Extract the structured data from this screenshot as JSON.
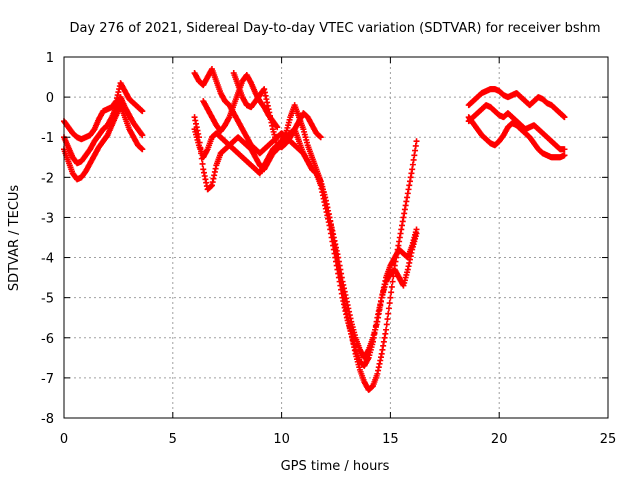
{
  "chart_data": {
    "type": "scatter",
    "title": "Day 276 of 2021, Sidereal Day-to-day VTEC variation (SDTVAR) for receiver bshm",
    "xlabel": "GPS time / hours",
    "ylabel": "SDTVAR / TECUs",
    "xlim": [
      0,
      25
    ],
    "ylim": [
      -8,
      1
    ],
    "x_ticks": [
      0,
      5,
      10,
      15,
      20,
      25
    ],
    "y_ticks": [
      1,
      0,
      -1,
      -2,
      -3,
      -4,
      -5,
      -6,
      -7,
      -8
    ],
    "grid": true,
    "marker": "+",
    "colors": {
      "points": "#ff0000",
      "axes": "#000000",
      "grid": "#a0a0a0"
    },
    "series": [
      {
        "x": [
          0.0,
          0.2,
          0.4,
          0.6,
          0.8,
          1.0,
          1.2,
          1.4,
          1.6,
          1.8,
          2.0,
          2.2,
          2.4,
          2.6,
          2.8,
          3.0,
          3.2,
          3.4,
          3.6
        ],
        "y": [
          -1.3,
          -1.6,
          -1.9,
          -2.05,
          -2.0,
          -1.85,
          -1.65,
          -1.45,
          -1.25,
          -1.1,
          -0.95,
          -0.7,
          -0.45,
          -0.2,
          -0.5,
          -0.8,
          -1.0,
          -1.2,
          -1.3
        ]
      },
      {
        "x": [
          0.0,
          0.2,
          0.4,
          0.6,
          0.8,
          1.0,
          1.2,
          1.4,
          1.6,
          1.8,
          2.0,
          2.2,
          2.4,
          2.6,
          2.8,
          3.0,
          3.2,
          3.4,
          3.6
        ],
        "y": [
          -1.0,
          -1.25,
          -1.5,
          -1.65,
          -1.6,
          -1.45,
          -1.3,
          -1.1,
          -0.95,
          -0.8,
          -0.7,
          -0.5,
          -0.25,
          0.0,
          -0.25,
          -0.45,
          -0.65,
          -0.8,
          -0.95
        ]
      },
      {
        "x": [
          0.0,
          0.2,
          0.4,
          0.6,
          0.8,
          1.0,
          1.2,
          1.4,
          1.6,
          1.8,
          2.0,
          2.2,
          2.4,
          2.6,
          2.8,
          3.0,
          3.2,
          3.4,
          3.6
        ],
        "y": [
          -0.6,
          -0.75,
          -0.9,
          -1.0,
          -1.05,
          -1.0,
          -0.95,
          -0.8,
          -0.55,
          -0.35,
          -0.3,
          -0.25,
          -0.1,
          0.35,
          0.15,
          -0.05,
          -0.15,
          -0.25,
          -0.35
        ]
      },
      {
        "x": [
          6.0,
          6.2,
          6.4,
          6.6,
          6.8,
          7.0,
          7.2,
          7.4,
          7.6,
          7.8,
          8.0,
          8.2,
          8.4,
          8.6,
          8.8,
          9.0,
          9.2,
          9.4,
          9.6,
          9.8,
          10.0,
          10.2,
          10.4,
          10.6,
          10.8,
          11.0,
          11.2,
          11.4,
          11.6,
          11.8,
          12.0,
          12.2,
          12.4,
          12.6,
          12.8,
          13.0,
          13.2,
          13.4,
          13.6,
          13.8,
          14.0,
          14.2,
          14.4,
          14.6,
          14.8,
          15.0,
          15.2,
          15.4,
          15.6,
          15.8,
          16.0,
          16.2
        ],
        "y": [
          -0.5,
          -1.0,
          -1.8,
          -2.3,
          -2.2,
          -1.7,
          -1.4,
          -1.3,
          -1.2,
          -1.1,
          -1.0,
          -1.1,
          -1.2,
          -1.3,
          -1.5,
          -1.7,
          -1.8,
          -1.6,
          -1.4,
          -1.3,
          -1.1,
          -0.9,
          -0.5,
          -0.2,
          -0.5,
          -0.8,
          -1.2,
          -1.5,
          -1.8,
          -2.1,
          -2.5,
          -3.0,
          -3.6,
          -4.2,
          -4.8,
          -5.4,
          -5.9,
          -6.4,
          -6.8,
          -7.1,
          -7.3,
          -7.2,
          -6.9,
          -6.4,
          -5.8,
          -5.0,
          -4.2,
          -3.6,
          -3.0,
          -2.4,
          -1.8,
          -1.1
        ]
      },
      {
        "x": [
          6.0,
          6.2,
          6.4,
          6.6,
          6.8,
          7.0,
          7.2,
          7.4,
          7.6,
          7.8,
          8.0,
          8.2,
          8.4,
          8.6,
          8.8,
          9.0,
          9.2,
          9.4,
          9.6,
          9.8,
          10.0,
          10.2,
          10.4,
          10.6,
          10.8,
          11.0,
          11.2,
          11.4,
          11.6,
          11.8,
          12.0,
          12.2,
          12.4,
          12.6,
          12.8,
          13.0,
          13.2,
          13.4,
          13.6,
          13.8,
          14.0,
          14.2,
          14.4,
          14.6,
          14.8,
          15.0,
          15.2,
          15.4,
          15.6,
          15.8,
          16.0,
          16.2
        ],
        "y": [
          -0.8,
          -1.2,
          -1.5,
          -1.3,
          -1.0,
          -0.9,
          -1.0,
          -1.1,
          -1.2,
          -1.3,
          -1.4,
          -1.5,
          -1.6,
          -1.7,
          -1.8,
          -1.9,
          -1.7,
          -1.5,
          -1.3,
          -1.2,
          -1.1,
          -1.0,
          -0.9,
          -0.8,
          -1.1,
          -1.4,
          -1.6,
          -1.8,
          -1.9,
          -2.2,
          -2.7,
          -3.2,
          -3.8,
          -4.4,
          -5.0,
          -5.5,
          -5.9,
          -6.3,
          -6.6,
          -6.7,
          -6.5,
          -6.1,
          -5.5,
          -5.0,
          -4.5,
          -4.2,
          -4.0,
          -3.8,
          -3.9,
          -4.0,
          -3.7,
          -3.3
        ]
      },
      {
        "x": [
          6.0,
          6.2,
          6.4,
          6.6,
          6.8,
          7.0,
          7.2,
          7.4,
          7.6,
          7.8,
          8.0,
          8.2,
          8.4,
          8.6,
          8.8,
          9.0,
          9.2,
          9.4,
          9.6,
          9.8,
          10.0,
          10.2,
          10.4,
          10.6,
          10.8,
          11.0,
          11.2,
          11.4,
          11.6,
          11.8,
          12.0,
          12.2,
          12.4,
          12.6,
          12.8,
          13.0,
          13.2,
          13.4,
          13.6,
          13.8,
          14.0,
          14.2,
          14.4,
          14.6,
          14.8,
          15.0,
          15.2,
          15.4,
          15.6,
          15.8,
          16.0,
          16.2
        ],
        "y": [
          0.6,
          0.4,
          0.3,
          0.5,
          0.7,
          0.4,
          0.1,
          -0.1,
          -0.2,
          -0.4,
          -0.6,
          -0.8,
          -1.0,
          -1.2,
          -1.3,
          -1.4,
          -1.3,
          -1.2,
          -1.1,
          -1.0,
          -0.9,
          -1.0,
          -1.1,
          -1.2,
          -1.3,
          -1.4,
          -1.6,
          -1.8,
          -1.9,
          -2.1,
          -2.5,
          -3.0,
          -3.5,
          -4.0,
          -4.6,
          -5.1,
          -5.6,
          -6.0,
          -6.3,
          -6.5,
          -6.3,
          -6.0,
          -5.6,
          -5.0,
          -4.6,
          -4.4,
          -4.3,
          -4.5,
          -4.7,
          -4.3,
          -3.8,
          -3.4
        ]
      },
      {
        "x": [
          6.4,
          6.6,
          6.8,
          7.0,
          7.2,
          7.4,
          7.6,
          7.8,
          8.0,
          8.2,
          8.4,
          8.6,
          8.8,
          9.0,
          9.2,
          9.4,
          9.6,
          9.8
        ],
        "y": [
          -0.1,
          -0.3,
          -0.5,
          -0.7,
          -0.85,
          -0.7,
          -0.5,
          -0.2,
          0.1,
          0.4,
          0.55,
          0.35,
          0.1,
          -0.1,
          -0.25,
          -0.45,
          -0.6,
          -0.75
        ]
      },
      {
        "x": [
          7.8,
          8.0,
          8.2,
          8.4,
          8.6,
          8.8,
          9.0,
          9.2,
          9.4,
          9.6,
          9.8,
          10.0,
          10.2,
          10.4,
          10.6,
          10.8,
          11.0,
          11.2,
          11.4,
          11.6,
          11.8
        ],
        "y": [
          0.6,
          0.3,
          0.0,
          -0.2,
          -0.25,
          -0.1,
          0.05,
          0.2,
          -0.3,
          -0.8,
          -1.2,
          -1.25,
          -1.15,
          -1.0,
          -0.8,
          -0.6,
          -0.4,
          -0.5,
          -0.7,
          -0.9,
          -1.0
        ]
      },
      {
        "x": [
          18.6,
          18.8,
          19.0,
          19.2,
          19.4,
          19.6,
          19.8,
          20.0,
          20.2,
          20.4,
          20.6,
          20.8,
          21.0,
          21.2,
          21.4,
          21.6,
          21.8,
          22.0,
          22.2,
          22.4,
          22.6,
          22.8,
          23.0
        ],
        "y": [
          -0.2,
          -0.1,
          0.0,
          0.1,
          0.15,
          0.2,
          0.2,
          0.15,
          0.05,
          0.0,
          0.05,
          0.1,
          0.0,
          -0.1,
          -0.2,
          -0.1,
          0.0,
          -0.05,
          -0.15,
          -0.2,
          -0.3,
          -0.4,
          -0.5
        ]
      },
      {
        "x": [
          18.6,
          18.8,
          19.0,
          19.2,
          19.4,
          19.6,
          19.8,
          20.0,
          20.2,
          20.4,
          20.6,
          20.8,
          21.0,
          21.2,
          21.4,
          21.6,
          21.8,
          22.0,
          22.2,
          22.4,
          22.6,
          22.8,
          23.0
        ],
        "y": [
          -0.6,
          -0.5,
          -0.4,
          -0.3,
          -0.2,
          -0.25,
          -0.35,
          -0.45,
          -0.5,
          -0.4,
          -0.5,
          -0.6,
          -0.7,
          -0.8,
          -0.75,
          -0.7,
          -0.8,
          -0.9,
          -1.0,
          -1.1,
          -1.2,
          -1.3,
          -1.3
        ]
      },
      {
        "x": [
          18.6,
          18.8,
          19.0,
          19.2,
          19.4,
          19.6,
          19.8,
          20.0,
          20.2,
          20.4,
          20.6,
          20.8,
          21.0,
          21.2,
          21.4,
          21.6,
          21.8,
          22.0,
          22.2,
          22.4,
          22.6,
          22.8,
          23.0
        ],
        "y": [
          -0.5,
          -0.65,
          -0.8,
          -0.95,
          -1.05,
          -1.15,
          -1.2,
          -1.1,
          -0.95,
          -0.75,
          -0.65,
          -0.7,
          -0.8,
          -0.9,
          -1.0,
          -1.15,
          -1.3,
          -1.4,
          -1.45,
          -1.5,
          -1.5,
          -1.5,
          -1.45
        ]
      }
    ]
  }
}
